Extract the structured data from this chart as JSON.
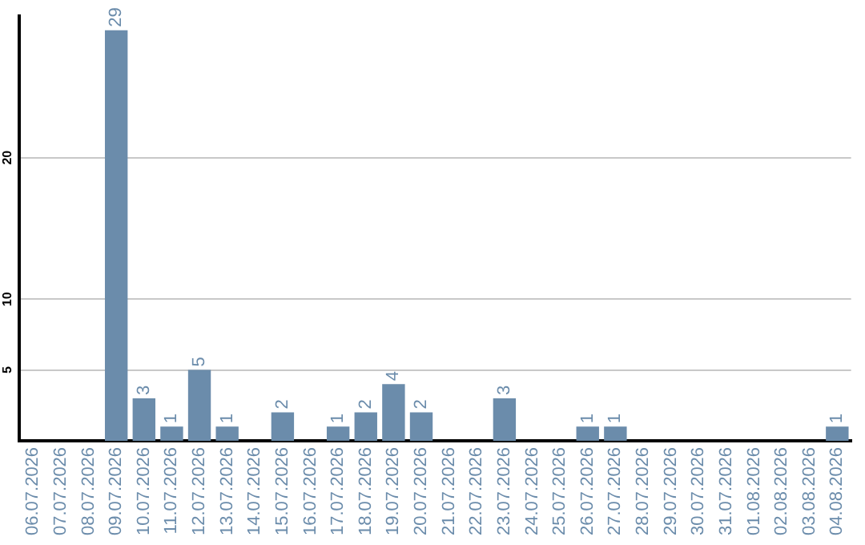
{
  "chart_data": {
    "type": "bar",
    "categories": [
      "06.07.2026",
      "07.07.2026",
      "08.07.2026",
      "09.07.2026",
      "10.07.2026",
      "11.07.2026",
      "12.07.2026",
      "13.07.2026",
      "14.07.2026",
      "15.07.2026",
      "16.07.2026",
      "17.07.2026",
      "18.07.2026",
      "19.07.2026",
      "20.07.2026",
      "21.07.2026",
      "22.07.2026",
      "23.07.2026",
      "24.07.2026",
      "25.07.2026",
      "26.07.2026",
      "27.07.2026",
      "28.07.2026",
      "29.07.2026",
      "30.07.2026",
      "31.07.2026",
      "01.08.2026",
      "02.08.2026",
      "03.08.2026",
      "04.08.2026"
    ],
    "values": [
      0,
      0,
      0,
      29,
      3,
      1,
      5,
      1,
      0,
      2,
      0,
      1,
      2,
      4,
      2,
      0,
      0,
      3,
      0,
      0,
      1,
      1,
      0,
      0,
      0,
      0,
      0,
      0,
      0,
      1
    ],
    "value_labels": [
      null,
      null,
      null,
      "29",
      "3",
      "1",
      "5",
      "1",
      null,
      "2",
      null,
      "1",
      "2",
      "4",
      "2",
      null,
      null,
      "3",
      null,
      null,
      "1",
      "1",
      null,
      null,
      null,
      null,
      null,
      null,
      null,
      "1"
    ],
    "color": "#6b8cab",
    "ylim": [
      0,
      30
    ],
    "yticks": [
      5,
      10,
      20
    ],
    "grid": "y",
    "legend": false
  }
}
